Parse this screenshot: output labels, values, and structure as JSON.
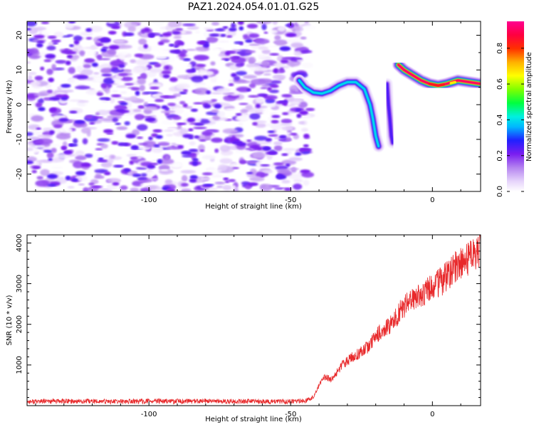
{
  "figure_title": "PAZ1.2024.054.01.01.G25",
  "chart_data": [
    {
      "type": "heatmap",
      "xlabel": "Height of straight line (km)",
      "ylabel": "Frequency (Hz)",
      "xlim": [
        -143,
        17
      ],
      "ylim": [
        -25,
        24
      ],
      "x_ticks": [
        -100,
        -50,
        0
      ],
      "x_tick_labels": [
        "-100",
        "-50",
        "0"
      ],
      "y_ticks": [
        20,
        10,
        0,
        -10,
        -20
      ],
      "y_tick_labels": [
        "20",
        "10",
        "0",
        "-10",
        "-20"
      ],
      "colorbar": {
        "label": "Normalized spectral amplitude",
        "range": [
          0.0,
          0.95
        ],
        "ticks": [
          0.0,
          0.2,
          0.4,
          0.6,
          0.8
        ],
        "tick_labels": [
          "0.0",
          "0.2",
          "0.4",
          "0.6",
          "0.8"
        ],
        "colormap": "gist_ncar-like: white, lavender, violet, blue, cyan, green, yellow, orange, red, magenta"
      },
      "noise_region": {
        "x_range": [
          -143,
          -43
        ],
        "y_range": [
          -25,
          24
        ],
        "amplitude_range": [
          0.0,
          0.25
        ]
      },
      "signal_track": {
        "segments": [
          {
            "points": [
              [
                -47,
                7
              ],
              [
                -45,
                5
              ],
              [
                -42,
                3.5
              ],
              [
                -39,
                3.2
              ],
              [
                -36,
                4
              ],
              [
                -33,
                5.5
              ],
              [
                -30,
                6.5
              ],
              [
                -27,
                6.5
              ],
              [
                -24,
                4.5
              ],
              [
                -22,
                0
              ],
              [
                -21,
                -4
              ],
              [
                -20,
                -9
              ],
              [
                -19,
                -12
              ]
            ],
            "peak_amplitude": 0.4
          },
          {
            "points": [
              [
                -16,
                6
              ],
              [
                -15.5,
                0
              ],
              [
                -15,
                -4
              ],
              [
                -14.5,
                -9
              ],
              [
                -14,
                -11
              ]
            ],
            "peak_amplitude": 0.25
          },
          {
            "points": [
              [
                -12,
                11.5
              ],
              [
                -10,
                10
              ],
              [
                -7,
                8.5
              ],
              [
                -4,
                7
              ],
              [
                -1,
                6
              ],
              [
                2,
                5.5
              ],
              [
                5,
                6
              ],
              [
                9,
                7
              ],
              [
                13,
                6.5
              ],
              [
                17,
                6
              ]
            ],
            "peak_amplitude": 0.92
          }
        ]
      }
    },
    {
      "type": "line",
      "xlabel": "Height of straight line (km)",
      "ylabel": "SNR (10 * v/v)",
      "xlim": [
        -143,
        17
      ],
      "ylim": [
        0,
        4200
      ],
      "x_ticks": [
        -100,
        -50,
        0
      ],
      "x_tick_labels": [
        "-100",
        "-50",
        "0"
      ],
      "y_ticks": [
        1000,
        2000,
        3000,
        4000
      ],
      "y_tick_labels": [
        "1000",
        "2000",
        "3000",
        "4000"
      ],
      "line_color": "#e8292b",
      "series": [
        {
          "x": [
            -143,
            -130,
            -120,
            -110,
            -100,
            -90,
            -80,
            -70,
            -60,
            -50,
            -45,
            -42,
            -40,
            -38,
            -36,
            -34,
            -32,
            -30,
            -28,
            -26,
            -24,
            -22,
            -20,
            -18,
            -16,
            -14,
            -12,
            -10,
            -8,
            -6,
            -4,
            -2,
            0,
            2,
            4,
            6,
            8,
            10,
            12,
            14,
            16,
            17
          ],
          "values": [
            100,
            110,
            105,
            100,
            110,
            105,
            110,
            105,
            100,
            100,
            120,
            200,
            500,
            700,
            650,
            800,
            1000,
            1100,
            1200,
            1300,
            1400,
            1500,
            1700,
            1850,
            1950,
            2050,
            2250,
            2450,
            2550,
            2650,
            2700,
            2800,
            2900,
            3000,
            3100,
            3250,
            3400,
            3500,
            3600,
            3700,
            3800,
            3900
          ]
        }
      ]
    }
  ]
}
